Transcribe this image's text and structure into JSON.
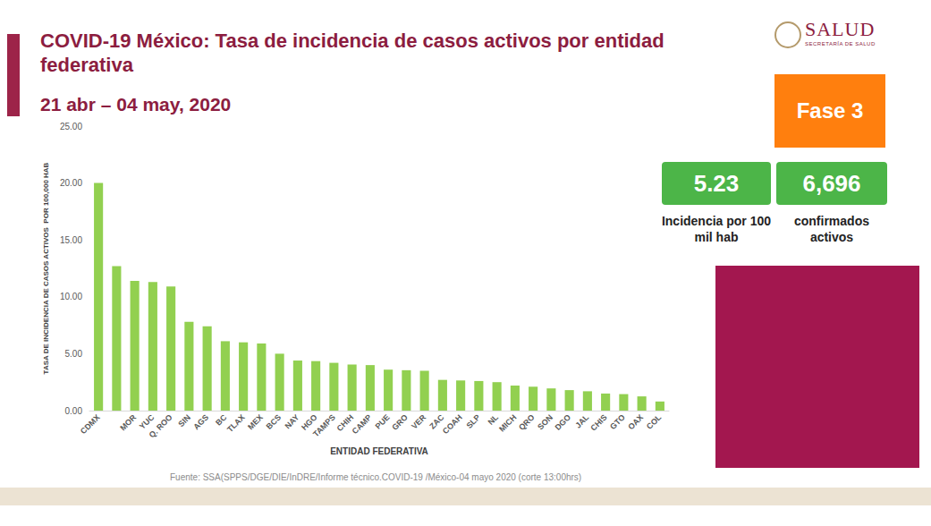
{
  "chart_data": {
    "type": "bar",
    "title": "COVID-19 México: Tasa de incidencia de casos activos por entidad federativa",
    "subtitle": "21 abr – 04 may, 2020",
    "x_label": "ENTIDAD FEDERATIVA",
    "y_label": "TASA DE INCIDENCIA DE CASOS ACTIVOS  POR 100,000 HAB",
    "categories": [
      "CDMX",
      null,
      "MOR",
      "YUC",
      "Q. ROO",
      "SIN",
      "AGS",
      "BC",
      "TLAX",
      "MEX",
      "BCS",
      "NAY",
      "HGO",
      "TAMPS",
      "CHIH",
      "CAMP",
      "PUE",
      "GRO",
      "VER",
      "ZAC",
      "COAH",
      "SLP",
      "NL",
      "MICH",
      "QRO",
      "SON",
      "DGO",
      "JAL",
      "CHIS",
      "GTO",
      "OAX",
      "COL"
    ],
    "values": [
      20.0,
      12.7,
      11.4,
      11.3,
      10.9,
      7.8,
      7.4,
      6.1,
      6.0,
      5.9,
      5.0,
      4.4,
      4.35,
      4.2,
      4.05,
      4.0,
      3.6,
      3.55,
      3.5,
      2.7,
      2.65,
      2.6,
      2.5,
      2.2,
      2.1,
      1.95,
      1.8,
      1.7,
      1.5,
      1.45,
      1.25,
      0.8
    ],
    "color": "#92d050",
    "ylim": [
      0,
      25
    ],
    "yticks": [
      {
        "value": 0,
        "label": "0.00"
      },
      {
        "value": 5,
        "label": "5.00"
      },
      {
        "value": 10,
        "label": "10.00"
      },
      {
        "value": 15,
        "label": "15.00"
      },
      {
        "value": 20,
        "label": "20.00"
      },
      {
        "value": 25,
        "label": "25.00"
      }
    ],
    "grid": false,
    "annotations": [
      "Fuente: SSA(SPPS/DGE/DIE/InDRE/Informe técnico.COVID-19 /México-04 mayo 2020 (corte 13:00hrs)"
    ]
  },
  "slide": {
    "logo": "SALUD",
    "logo_subtitle": "SECRETARÍA DE SALUD",
    "phase": "Fase 3",
    "stats": [
      {
        "value": "5.23",
        "label": "Incidencia por 100 mil hab"
      },
      {
        "value": "6,696",
        "label": "confirmados activos"
      }
    ]
  }
}
